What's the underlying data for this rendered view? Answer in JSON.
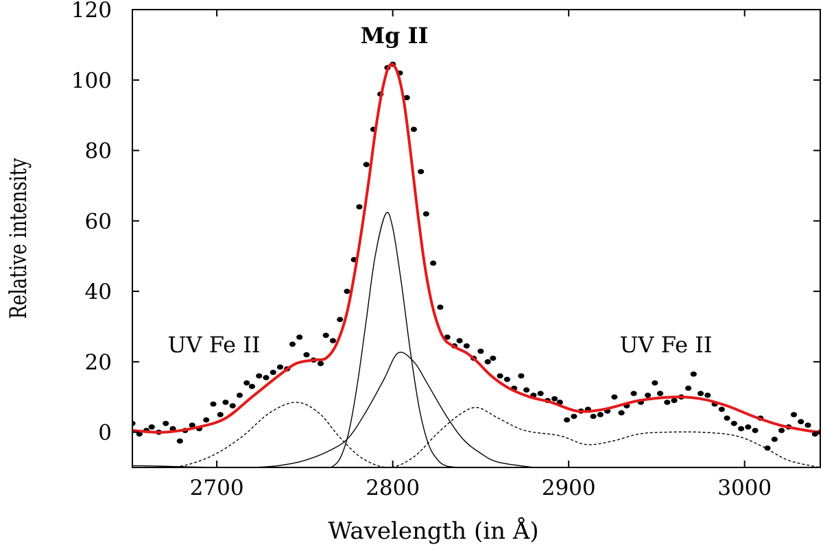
{
  "chart_data": {
    "type": "line",
    "title": "",
    "xlabel": "Wavelength (in Å)",
    "ylabel": "Relative intensity",
    "xlim": [
      2652,
      3043
    ],
    "ylim": [
      -10,
      120
    ],
    "xticks": [
      2700,
      2800,
      2900,
      3000
    ],
    "yticks": [
      0,
      20,
      40,
      60,
      80,
      100,
      120
    ],
    "grid": false,
    "legend": "none",
    "annotations": [
      {
        "text": "Mg II",
        "x": 2797,
        "y": 115
      },
      {
        "text": "UV Fe II",
        "x": 2693,
        "y": 23
      },
      {
        "text": "UV Fe II",
        "x": 2950,
        "y": 23
      }
    ],
    "colors": {
      "fit": "#e41a1c",
      "data": "#000000",
      "components": "#000000"
    },
    "series": [
      {
        "name": "observed",
        "style": "points",
        "x": [
          2652,
          2656,
          2660,
          2663,
          2667,
          2671,
          2675,
          2679,
          2682,
          2686,
          2690,
          2694,
          2698,
          2702,
          2705,
          2709,
          2713,
          2717,
          2720,
          2724,
          2728,
          2732,
          2736,
          2740,
          2743,
          2747,
          2751,
          2755,
          2759,
          2762,
          2766,
          2770,
          2774,
          2778,
          2781,
          2785,
          2789,
          2793,
          2797,
          2800,
          2804,
          2808,
          2812,
          2816,
          2819,
          2823,
          2827,
          2831,
          2835,
          2838,
          2842,
          2846,
          2850,
          2854,
          2857,
          2861,
          2865,
          2869,
          2873,
          2876,
          2880,
          2884,
          2888,
          2892,
          2895,
          2899,
          2903,
          2907,
          2911,
          2914,
          2918,
          2922,
          2926,
          2930,
          2933,
          2937,
          2941,
          2945,
          2949,
          2952,
          2956,
          2960,
          2964,
          2968,
          2971,
          2975,
          2979,
          2983,
          2987,
          2990,
          2994,
          2998,
          3002,
          3006,
          3009,
          3013,
          3017,
          3021,
          3025,
          3028,
          3032,
          3036,
          3040,
          3043
        ],
        "y": [
          2.5,
          -0.5,
          0.5,
          1.5,
          0.0,
          2.5,
          1.0,
          -2.5,
          0.5,
          2.0,
          1.0,
          3.5,
          8.0,
          5.0,
          8.5,
          7.5,
          10.5,
          14.0,
          13.0,
          16.0,
          15.5,
          17.0,
          18.5,
          18.0,
          25.0,
          27.0,
          22.0,
          20.5,
          19.5,
          27.5,
          26.0,
          32.0,
          40.0,
          49.0,
          64.0,
          76.0,
          86.0,
          96.0,
          103.5,
          104.5,
          102.0,
          95.0,
          86.0,
          74.0,
          62.0,
          48.0,
          35.5,
          27.0,
          24.5,
          26.0,
          24.5,
          21.0,
          23.0,
          20.0,
          21.0,
          16.0,
          15.0,
          12.5,
          16.0,
          12.0,
          10.5,
          11.0,
          9.0,
          9.5,
          8.5,
          3.5,
          4.5,
          6.0,
          6.5,
          4.5,
          5.0,
          6.0,
          10.0,
          5.5,
          7.5,
          11.0,
          8.5,
          10.5,
          14.0,
          11.0,
          8.5,
          9.0,
          10.0,
          12.5,
          16.5,
          11.0,
          10.5,
          8.0,
          6.5,
          4.0,
          2.5,
          1.0,
          1.5,
          0.5,
          4.0,
          -4.5,
          -2.0,
          0.5,
          1.5,
          5.0,
          3.0,
          2.0,
          -0.5,
          0.0
        ]
      },
      {
        "name": "total-fit",
        "style": "thick-line",
        "x": [
          2652,
          2670,
          2690,
          2705,
          2720,
          2735,
          2745,
          2755,
          2762,
          2768,
          2774,
          2780,
          2786,
          2790,
          2794,
          2798,
          2802,
          2806,
          2810,
          2814,
          2818,
          2822,
          2826,
          2830,
          2836,
          2842,
          2848,
          2856,
          2866,
          2878,
          2890,
          2905,
          2920,
          2940,
          2960,
          2975,
          2990,
          3005,
          3020,
          3035,
          3043
        ],
        "y": [
          0.5,
          0.0,
          1.5,
          4.0,
          10.0,
          16.0,
          19.5,
          20.5,
          21.0,
          25.0,
          34.0,
          50.0,
          70.0,
          85.0,
          97.0,
          104.0,
          103.0,
          95.0,
          80.0,
          63.0,
          48.0,
          37.0,
          30.0,
          26.0,
          24.0,
          22.5,
          20.0,
          16.0,
          12.5,
          10.0,
          8.5,
          6.0,
          6.5,
          9.0,
          10.0,
          9.5,
          7.5,
          4.5,
          2.0,
          0.5,
          0.0
        ]
      },
      {
        "name": "MgII-narrow",
        "style": "thin-line",
        "x": [
          2765,
          2770,
          2775,
          2780,
          2785,
          2790,
          2796,
          2800,
          2805,
          2810,
          2815,
          2820,
          2825,
          2830,
          2838
        ],
        "y": [
          -10.0,
          -7.5,
          0.0,
          14.0,
          32.0,
          50.0,
          62.0,
          58.0,
          42.0,
          23.0,
          7.0,
          -3.0,
          -7.5,
          -9.5,
          -10.0
        ]
      },
      {
        "name": "MgII-broad",
        "style": "thin-line",
        "x": [
          2720,
          2735,
          2750,
          2765,
          2775,
          2785,
          2795,
          2803,
          2812,
          2820,
          2830,
          2840,
          2850,
          2860,
          2880
        ],
        "y": [
          -10.0,
          -9.5,
          -8.0,
          -5.0,
          -1.5,
          6.0,
          15.0,
          22.5,
          20.0,
          13.5,
          5.0,
          -2.0,
          -6.0,
          -8.5,
          -10.0
        ]
      },
      {
        "name": "UVFeII-template",
        "style": "dashed-line",
        "x": [
          2652,
          2672,
          2685,
          2700,
          2715,
          2730,
          2745,
          2758,
          2770,
          2783,
          2798,
          2812,
          2825,
          2838,
          2848,
          2860,
          2875,
          2895,
          2910,
          2925,
          2940,
          2955,
          2975,
          2995,
          3010,
          3025,
          3043
        ],
        "y": [
          -10.0,
          -10.0,
          -9.0,
          -6.0,
          -1.0,
          5.5,
          8.5,
          5.5,
          -1.5,
          -7.5,
          -10.0,
          -7.0,
          -0.5,
          5.0,
          7.0,
          4.0,
          0.5,
          -1.0,
          -3.5,
          -2.5,
          -0.5,
          0.0,
          0.0,
          -1.0,
          -4.0,
          -8.0,
          -10.0
        ]
      },
      {
        "name": "baseline-left",
        "style": "thin-line",
        "x": [
          2652,
          2665,
          2680,
          2700
        ],
        "y": [
          -9.5,
          -9.6,
          -9.8,
          -10.0
        ]
      }
    ]
  }
}
